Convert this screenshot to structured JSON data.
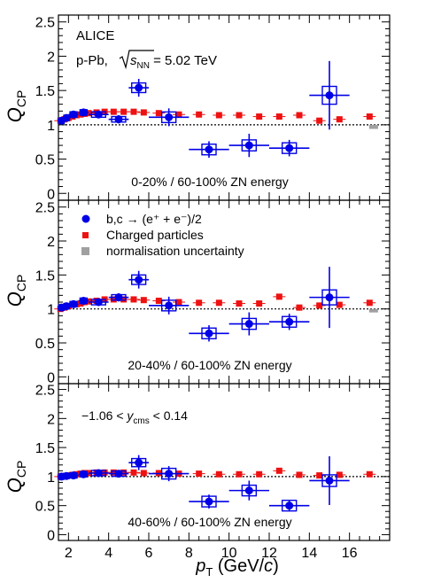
{
  "figure": {
    "x_axis_label_main": "p",
    "x_axis_label_sub": "T",
    "x_axis_label_unit_open": " (GeV/",
    "x_axis_label_unit_italic": "c",
    "x_axis_label_unit_close": ")",
    "y_axis_label_main": "Q",
    "y_axis_label_sub": "CP"
  },
  "colors": {
    "hfe": "#0000e6",
    "charged": "#ee1111",
    "norm": "#a0a0a0",
    "frame": "#000000",
    "reference_line": "#000000"
  },
  "legend": {
    "hfe_label": "b,c → (e⁺ + e⁻)/2",
    "charged_label": "Charged particles",
    "norm_label": "normalisation uncertainty"
  },
  "annotations": {
    "experiment": "ALICE",
    "system_prefix": "p-Pb, ",
    "sqrt_s": "s",
    "sqrt_s_sub": "NN",
    "energy": " = 5.02 TeV",
    "rapidity_prefix": "−1.06 < ",
    "rapidity_var": "y",
    "rapidity_sub": "cms",
    "rapidity_suffix": " < 0.14"
  },
  "chart_data": [
    {
      "type": "scatter",
      "title": "0-20% / 60-100% ZN energy",
      "xlabel": "pT (GeV/c)",
      "ylabel": "QCP",
      "xlim": [
        1.5,
        18
      ],
      "ylim": [
        -0.1,
        2.6
      ],
      "x_ticks": [
        2,
        4,
        6,
        8,
        10,
        12,
        14,
        16
      ],
      "y_ticks": [
        0,
        0.5,
        1,
        1.5,
        2,
        2.5
      ],
      "y_tick_labels": [
        "0",
        "0.5",
        "1",
        "1.5",
        "2",
        "2.5"
      ],
      "reference_line": 1,
      "normalisation_uncertainty": {
        "x": 17.2,
        "y_low": 0.94,
        "y_high": 1.0
      },
      "series": [
        {
          "name": "b,c → (e⁺ + e⁻)/2",
          "points": [
            {
              "x": 1.65,
              "y": 1.06,
              "xerr": 0.15,
              "yerr": 0.03,
              "syst": 0.04
            },
            {
              "x": 1.9,
              "y": 1.1,
              "xerr": 0.1,
              "yerr": 0.03,
              "syst": 0.04
            },
            {
              "x": 2.25,
              "y": 1.15,
              "xerr": 0.25,
              "yerr": 0.03,
              "syst": 0.04
            },
            {
              "x": 2.75,
              "y": 1.18,
              "xerr": 0.25,
              "yerr": 0.03,
              "syst": 0.04
            },
            {
              "x": 3.5,
              "y": 1.15,
              "xerr": 0.5,
              "yerr": 0.04,
              "syst": 0.04
            },
            {
              "x": 4.5,
              "y": 1.08,
              "xerr": 0.5,
              "yerr": 0.06,
              "syst": 0.04
            },
            {
              "x": 5.5,
              "y": 1.54,
              "xerr": 0.5,
              "yerr": 0.13,
              "syst": 0.07
            },
            {
              "x": 7.0,
              "y": 1.11,
              "xerr": 1.0,
              "yerr": 0.13,
              "syst": 0.07
            },
            {
              "x": 9.0,
              "y": 0.64,
              "xerr": 1.0,
              "yerr": 0.12,
              "syst": 0.07
            },
            {
              "x": 11.0,
              "y": 0.7,
              "xerr": 1.0,
              "yerr": 0.17,
              "syst": 0.08
            },
            {
              "x": 13.0,
              "y": 0.66,
              "xerr": 1.0,
              "yerr": 0.12,
              "syst": 0.07
            },
            {
              "x": 15.0,
              "y": 1.43,
              "xerr": 1.0,
              "yerr": 0.5,
              "syst": 0.13
            }
          ]
        },
        {
          "name": "Charged particles",
          "points": [
            {
              "x": 1.6,
              "y": 1.06
            },
            {
              "x": 1.8,
              "y": 1.08
            },
            {
              "x": 2.0,
              "y": 1.1
            },
            {
              "x": 2.2,
              "y": 1.12
            },
            {
              "x": 2.4,
              "y": 1.14
            },
            {
              "x": 2.6,
              "y": 1.15
            },
            {
              "x": 2.8,
              "y": 1.16
            },
            {
              "x": 3.0,
              "y": 1.17
            },
            {
              "x": 3.4,
              "y": 1.18
            },
            {
              "x": 3.8,
              "y": 1.19
            },
            {
              "x": 4.25,
              "y": 1.19
            },
            {
              "x": 4.75,
              "y": 1.19
            },
            {
              "x": 5.25,
              "y": 1.19
            },
            {
              "x": 5.75,
              "y": 1.18
            },
            {
              "x": 6.5,
              "y": 1.17
            },
            {
              "x": 7.5,
              "y": 1.15
            },
            {
              "x": 8.5,
              "y": 1.15
            },
            {
              "x": 9.5,
              "y": 1.14
            },
            {
              "x": 10.5,
              "y": 1.14
            },
            {
              "x": 11.5,
              "y": 1.12
            },
            {
              "x": 12.5,
              "y": 1.12
            },
            {
              "x": 13.5,
              "y": 1.14
            },
            {
              "x": 14.5,
              "y": 1.06
            },
            {
              "x": 15.5,
              "y": 1.08
            },
            {
              "x": 17.0,
              "y": 1.12
            }
          ]
        }
      ]
    },
    {
      "type": "scatter",
      "title": "20-40% / 60-100% ZN energy",
      "xlabel": "pT (GeV/c)",
      "ylabel": "QCP",
      "xlim": [
        1.5,
        18
      ],
      "ylim": [
        -0.1,
        2.6
      ],
      "x_ticks": [
        2,
        4,
        6,
        8,
        10,
        12,
        14,
        16
      ],
      "y_ticks": [
        0,
        0.5,
        1,
        1.5,
        2,
        2.5
      ],
      "y_tick_labels": [
        "0",
        "0.5",
        "1",
        "1.5",
        "2",
        "2.5"
      ],
      "reference_line": 1,
      "normalisation_uncertainty": {
        "x": 17.2,
        "y_low": 0.95,
        "y_high": 1.0
      },
      "series": [
        {
          "name": "b,c → (e⁺ + e⁻)/2",
          "points": [
            {
              "x": 1.65,
              "y": 1.02,
              "xerr": 0.15,
              "yerr": 0.03,
              "syst": 0.04
            },
            {
              "x": 1.9,
              "y": 1.04,
              "xerr": 0.1,
              "yerr": 0.03,
              "syst": 0.04
            },
            {
              "x": 2.25,
              "y": 1.07,
              "xerr": 0.25,
              "yerr": 0.03,
              "syst": 0.04
            },
            {
              "x": 2.75,
              "y": 1.12,
              "xerr": 0.25,
              "yerr": 0.03,
              "syst": 0.04
            },
            {
              "x": 3.5,
              "y": 1.1,
              "xerr": 0.5,
              "yerr": 0.04,
              "syst": 0.04
            },
            {
              "x": 4.5,
              "y": 1.17,
              "xerr": 0.5,
              "yerr": 0.06,
              "syst": 0.04
            },
            {
              "x": 5.5,
              "y": 1.43,
              "xerr": 0.5,
              "yerr": 0.13,
              "syst": 0.07
            },
            {
              "x": 7.0,
              "y": 1.05,
              "xerr": 1.0,
              "yerr": 0.13,
              "syst": 0.07
            },
            {
              "x": 9.0,
              "y": 0.64,
              "xerr": 1.0,
              "yerr": 0.12,
              "syst": 0.07
            },
            {
              "x": 11.0,
              "y": 0.78,
              "xerr": 1.0,
              "yerr": 0.17,
              "syst": 0.08
            },
            {
              "x": 13.0,
              "y": 0.81,
              "xerr": 1.0,
              "yerr": 0.12,
              "syst": 0.07
            },
            {
              "x": 15.0,
              "y": 1.17,
              "xerr": 1.0,
              "yerr": 0.45,
              "syst": 0.11
            }
          ]
        },
        {
          "name": "Charged particles",
          "points": [
            {
              "x": 1.6,
              "y": 1.0
            },
            {
              "x": 1.8,
              "y": 1.02
            },
            {
              "x": 2.0,
              "y": 1.04
            },
            {
              "x": 2.2,
              "y": 1.06
            },
            {
              "x": 2.4,
              "y": 1.07
            },
            {
              "x": 2.6,
              "y": 1.08
            },
            {
              "x": 2.8,
              "y": 1.1
            },
            {
              "x": 3.0,
              "y": 1.11
            },
            {
              "x": 3.4,
              "y": 1.12
            },
            {
              "x": 3.8,
              "y": 1.14
            },
            {
              "x": 4.25,
              "y": 1.14
            },
            {
              "x": 4.75,
              "y": 1.14
            },
            {
              "x": 5.25,
              "y": 1.14
            },
            {
              "x": 5.75,
              "y": 1.13
            },
            {
              "x": 6.5,
              "y": 1.12
            },
            {
              "x": 7.5,
              "y": 1.1
            },
            {
              "x": 8.5,
              "y": 1.09
            },
            {
              "x": 9.5,
              "y": 1.09
            },
            {
              "x": 10.5,
              "y": 1.08
            },
            {
              "x": 11.5,
              "y": 1.08
            },
            {
              "x": 12.5,
              "y": 1.18
            },
            {
              "x": 13.5,
              "y": 1.02
            },
            {
              "x": 14.5,
              "y": 1.05
            },
            {
              "x": 15.5,
              "y": 1.06
            },
            {
              "x": 17.0,
              "y": 1.09
            }
          ]
        }
      ]
    },
    {
      "type": "scatter",
      "title": "40-60% / 60-100% ZN energy",
      "xlabel": "pT (GeV/c)",
      "ylabel": "QCP",
      "xlim": [
        1.5,
        18
      ],
      "ylim": [
        -0.1,
        2.6
      ],
      "x_ticks": [
        2,
        4,
        6,
        8,
        10,
        12,
        14,
        16
      ],
      "x_tick_labels": [
        "2",
        "4",
        "6",
        "8",
        "10",
        "12",
        "14",
        "16"
      ],
      "y_ticks": [
        0,
        0.5,
        1,
        1.5,
        2,
        2.5
      ],
      "y_tick_labels": [
        "0",
        "0.5",
        "1",
        "1.5",
        "2",
        "2.5"
      ],
      "reference_line": 1,
      "series": [
        {
          "name": "b,c → (e⁺ + e⁻)/2",
          "points": [
            {
              "x": 1.65,
              "y": 1.0,
              "xerr": 0.15,
              "yerr": 0.03,
              "syst": 0.04
            },
            {
              "x": 1.9,
              "y": 1.01,
              "xerr": 0.1,
              "yerr": 0.03,
              "syst": 0.04
            },
            {
              "x": 2.25,
              "y": 1.02,
              "xerr": 0.25,
              "yerr": 0.03,
              "syst": 0.04
            },
            {
              "x": 2.75,
              "y": 1.04,
              "xerr": 0.25,
              "yerr": 0.03,
              "syst": 0.04
            },
            {
              "x": 3.5,
              "y": 1.06,
              "xerr": 0.5,
              "yerr": 0.04,
              "syst": 0.04
            },
            {
              "x": 4.5,
              "y": 1.05,
              "xerr": 0.5,
              "yerr": 0.06,
              "syst": 0.04
            },
            {
              "x": 5.5,
              "y": 1.24,
              "xerr": 0.5,
              "yerr": 0.13,
              "syst": 0.07
            },
            {
              "x": 7.0,
              "y": 1.05,
              "xerr": 1.0,
              "yerr": 0.13,
              "syst": 0.07
            },
            {
              "x": 9.0,
              "y": 0.57,
              "xerr": 1.0,
              "yerr": 0.12,
              "syst": 0.07
            },
            {
              "x": 11.0,
              "y": 0.76,
              "xerr": 1.0,
              "yerr": 0.17,
              "syst": 0.08
            },
            {
              "x": 13.0,
              "y": 0.5,
              "xerr": 1.0,
              "yerr": 0.1,
              "syst": 0.06
            },
            {
              "x": 15.0,
              "y": 0.93,
              "xerr": 1.0,
              "yerr": 0.42,
              "syst": 0.1
            }
          ]
        },
        {
          "name": "Charged particles",
          "points": [
            {
              "x": 1.6,
              "y": 1.0
            },
            {
              "x": 1.8,
              "y": 1.01
            },
            {
              "x": 2.0,
              "y": 1.02
            },
            {
              "x": 2.2,
              "y": 1.03
            },
            {
              "x": 2.4,
              "y": 1.04
            },
            {
              "x": 2.6,
              "y": 1.05
            },
            {
              "x": 2.8,
              "y": 1.06
            },
            {
              "x": 3.0,
              "y": 1.06
            },
            {
              "x": 3.4,
              "y": 1.07
            },
            {
              "x": 3.8,
              "y": 1.07
            },
            {
              "x": 4.25,
              "y": 1.07
            },
            {
              "x": 4.75,
              "y": 1.07
            },
            {
              "x": 5.25,
              "y": 1.07
            },
            {
              "x": 5.75,
              "y": 1.06
            },
            {
              "x": 6.5,
              "y": 1.06
            },
            {
              "x": 7.5,
              "y": 1.05
            },
            {
              "x": 8.5,
              "y": 1.05
            },
            {
              "x": 9.5,
              "y": 1.04
            },
            {
              "x": 10.5,
              "y": 1.04
            },
            {
              "x": 11.5,
              "y": 1.04
            },
            {
              "x": 12.5,
              "y": 1.1
            },
            {
              "x": 13.5,
              "y": 1.03
            },
            {
              "x": 14.5,
              "y": 1.02
            },
            {
              "x": 15.5,
              "y": 1.03
            },
            {
              "x": 17.0,
              "y": 1.04
            }
          ]
        }
      ]
    }
  ]
}
